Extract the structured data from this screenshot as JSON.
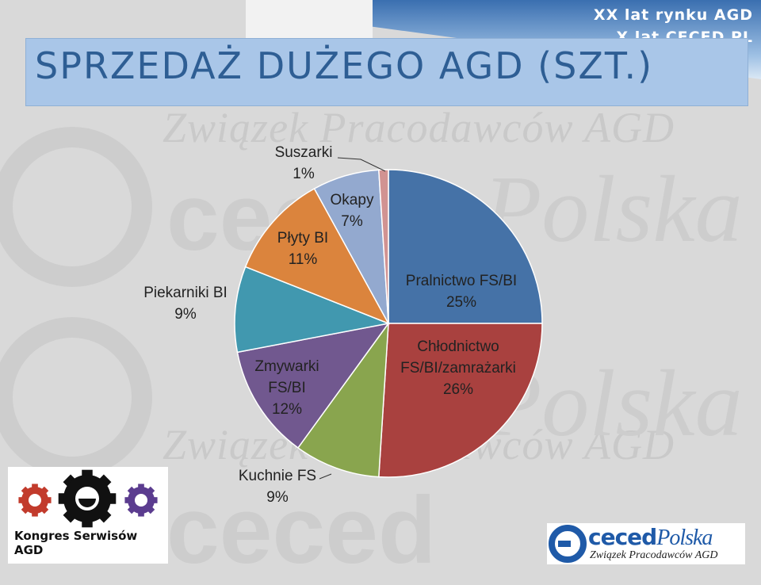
{
  "header": {
    "title": "SPRZEDAŻ DUŻEGO AGD (SZT.)",
    "corner_line1": "XX lat rynku AGD",
    "corner_line2": "X lat CECED PL"
  },
  "watermark": {
    "line1": "Związek Pracodawców AGD",
    "word1": "ceced",
    "word2": "Polska"
  },
  "logos": {
    "left_text": "Kongres Serwisów AGD",
    "right_main": "ceced",
    "right_main_italic": "Polska",
    "right_sub": "Związek Pracodawców AGD"
  },
  "chart_data": {
    "type": "pie",
    "title": "",
    "start_angle_deg": 0,
    "direction": "clockwise",
    "slices": [
      {
        "name": "Pralnictwo FS/BI",
        "value": 25,
        "label": "25%",
        "color": "#4572a7"
      },
      {
        "name": "Chłodnictwo FS/BI/zamrażarki",
        "value": 26,
        "label": "26%",
        "color": "#a9413f"
      },
      {
        "name": "Kuchnie FS",
        "value": 9,
        "label": "9%",
        "color": "#89a54e"
      },
      {
        "name": "Zmywarki FS/BI",
        "value": 12,
        "label": "12%",
        "color": "#71588f"
      },
      {
        "name": "Piekarniki BI",
        "value": 9,
        "label": "9%",
        "color": "#4198af"
      },
      {
        "name": "Płyty BI",
        "value": 11,
        "label": "11%",
        "color": "#db843d"
      },
      {
        "name": "Okapy",
        "value": 7,
        "label": "7%",
        "color": "#93a9cf"
      },
      {
        "name": "Suszarki",
        "value": 1,
        "label": "1%",
        "color": "#d19392"
      }
    ]
  }
}
